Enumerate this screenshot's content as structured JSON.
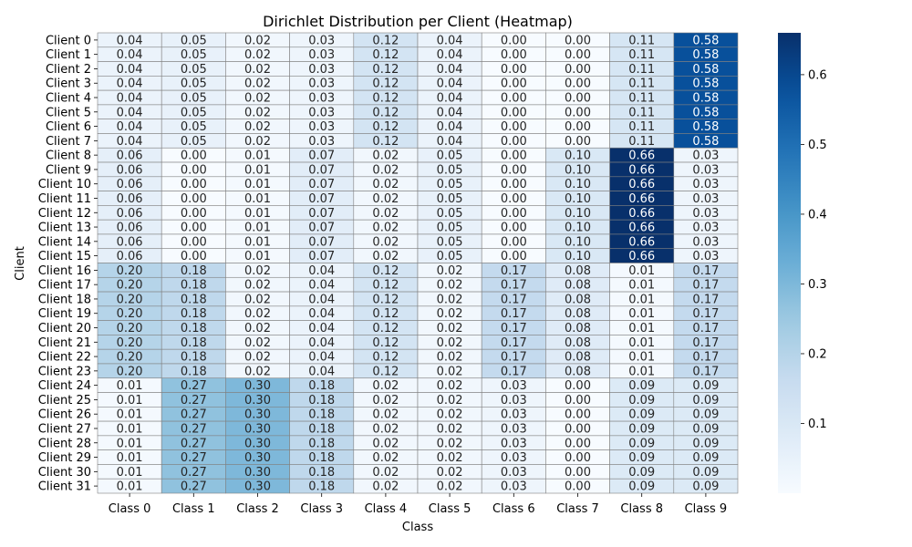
{
  "chart_data": {
    "type": "heatmap",
    "title": "Dirichlet Distribution per Client (Heatmap)",
    "xlabel": "Class",
    "ylabel": "Client",
    "x_categories": [
      "Class 0",
      "Class 1",
      "Class 2",
      "Class 3",
      "Class 4",
      "Class 5",
      "Class 6",
      "Class 7",
      "Class 8",
      "Class 9"
    ],
    "y_categories": [
      "Client 0",
      "Client 1",
      "Client 2",
      "Client 3",
      "Client 4",
      "Client 5",
      "Client 6",
      "Client 7",
      "Client 8",
      "Client 9",
      "Client 10",
      "Client 11",
      "Client 12",
      "Client 13",
      "Client 14",
      "Client 15",
      "Client 16",
      "Client 17",
      "Client 18",
      "Client 19",
      "Client 20",
      "Client 21",
      "Client 22",
      "Client 23",
      "Client 24",
      "Client 25",
      "Client 26",
      "Client 27",
      "Client 28",
      "Client 29",
      "Client 30",
      "Client 31"
    ],
    "values": [
      [
        0.04,
        0.05,
        0.02,
        0.03,
        0.12,
        0.04,
        0.0,
        0.0,
        0.11,
        0.58
      ],
      [
        0.04,
        0.05,
        0.02,
        0.03,
        0.12,
        0.04,
        0.0,
        0.0,
        0.11,
        0.58
      ],
      [
        0.04,
        0.05,
        0.02,
        0.03,
        0.12,
        0.04,
        0.0,
        0.0,
        0.11,
        0.58
      ],
      [
        0.04,
        0.05,
        0.02,
        0.03,
        0.12,
        0.04,
        0.0,
        0.0,
        0.11,
        0.58
      ],
      [
        0.04,
        0.05,
        0.02,
        0.03,
        0.12,
        0.04,
        0.0,
        0.0,
        0.11,
        0.58
      ],
      [
        0.04,
        0.05,
        0.02,
        0.03,
        0.12,
        0.04,
        0.0,
        0.0,
        0.11,
        0.58
      ],
      [
        0.04,
        0.05,
        0.02,
        0.03,
        0.12,
        0.04,
        0.0,
        0.0,
        0.11,
        0.58
      ],
      [
        0.04,
        0.05,
        0.02,
        0.03,
        0.12,
        0.04,
        0.0,
        0.0,
        0.11,
        0.58
      ],
      [
        0.06,
        0.0,
        0.01,
        0.07,
        0.02,
        0.05,
        0.0,
        0.1,
        0.66,
        0.03
      ],
      [
        0.06,
        0.0,
        0.01,
        0.07,
        0.02,
        0.05,
        0.0,
        0.1,
        0.66,
        0.03
      ],
      [
        0.06,
        0.0,
        0.01,
        0.07,
        0.02,
        0.05,
        0.0,
        0.1,
        0.66,
        0.03
      ],
      [
        0.06,
        0.0,
        0.01,
        0.07,
        0.02,
        0.05,
        0.0,
        0.1,
        0.66,
        0.03
      ],
      [
        0.06,
        0.0,
        0.01,
        0.07,
        0.02,
        0.05,
        0.0,
        0.1,
        0.66,
        0.03
      ],
      [
        0.06,
        0.0,
        0.01,
        0.07,
        0.02,
        0.05,
        0.0,
        0.1,
        0.66,
        0.03
      ],
      [
        0.06,
        0.0,
        0.01,
        0.07,
        0.02,
        0.05,
        0.0,
        0.1,
        0.66,
        0.03
      ],
      [
        0.06,
        0.0,
        0.01,
        0.07,
        0.02,
        0.05,
        0.0,
        0.1,
        0.66,
        0.03
      ],
      [
        0.2,
        0.18,
        0.02,
        0.04,
        0.12,
        0.02,
        0.17,
        0.08,
        0.01,
        0.17
      ],
      [
        0.2,
        0.18,
        0.02,
        0.04,
        0.12,
        0.02,
        0.17,
        0.08,
        0.01,
        0.17
      ],
      [
        0.2,
        0.18,
        0.02,
        0.04,
        0.12,
        0.02,
        0.17,
        0.08,
        0.01,
        0.17
      ],
      [
        0.2,
        0.18,
        0.02,
        0.04,
        0.12,
        0.02,
        0.17,
        0.08,
        0.01,
        0.17
      ],
      [
        0.2,
        0.18,
        0.02,
        0.04,
        0.12,
        0.02,
        0.17,
        0.08,
        0.01,
        0.17
      ],
      [
        0.2,
        0.18,
        0.02,
        0.04,
        0.12,
        0.02,
        0.17,
        0.08,
        0.01,
        0.17
      ],
      [
        0.2,
        0.18,
        0.02,
        0.04,
        0.12,
        0.02,
        0.17,
        0.08,
        0.01,
        0.17
      ],
      [
        0.2,
        0.18,
        0.02,
        0.04,
        0.12,
        0.02,
        0.17,
        0.08,
        0.01,
        0.17
      ],
      [
        0.01,
        0.27,
        0.3,
        0.18,
        0.02,
        0.02,
        0.03,
        0.0,
        0.09,
        0.09
      ],
      [
        0.01,
        0.27,
        0.3,
        0.18,
        0.02,
        0.02,
        0.03,
        0.0,
        0.09,
        0.09
      ],
      [
        0.01,
        0.27,
        0.3,
        0.18,
        0.02,
        0.02,
        0.03,
        0.0,
        0.09,
        0.09
      ],
      [
        0.01,
        0.27,
        0.3,
        0.18,
        0.02,
        0.02,
        0.03,
        0.0,
        0.09,
        0.09
      ],
      [
        0.01,
        0.27,
        0.3,
        0.18,
        0.02,
        0.02,
        0.03,
        0.0,
        0.09,
        0.09
      ],
      [
        0.01,
        0.27,
        0.3,
        0.18,
        0.02,
        0.02,
        0.03,
        0.0,
        0.09,
        0.09
      ],
      [
        0.01,
        0.27,
        0.3,
        0.18,
        0.02,
        0.02,
        0.03,
        0.0,
        0.09,
        0.09
      ],
      [
        0.01,
        0.27,
        0.3,
        0.18,
        0.02,
        0.02,
        0.03,
        0.0,
        0.09,
        0.09
      ]
    ],
    "colorbar": {
      "colormap": "Blues",
      "range": [
        0.0,
        0.66
      ],
      "ticks": [
        0.1,
        0.2,
        0.3,
        0.4,
        0.5,
        0.6
      ]
    },
    "annotations": "cell values shown with 2 decimals",
    "grid": true
  }
}
